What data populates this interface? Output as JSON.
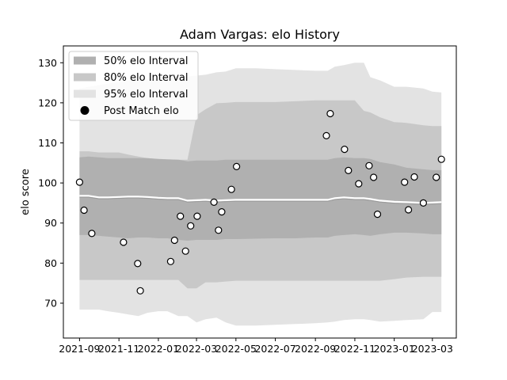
{
  "chart_data": {
    "type": "area",
    "title": "Adam Vargas: elo History",
    "xlabel": "",
    "ylabel": "elo score",
    "ylim": [
      61.3,
      134.2
    ],
    "xlim": [
      "2021-08-07",
      "2023-04-07"
    ],
    "y_ticks": [
      70,
      80,
      90,
      100,
      110,
      120,
      130
    ],
    "x_ticks": [
      "2021-09",
      "2021-11",
      "2022-01",
      "2022-03",
      "2022-05",
      "2022-07",
      "2022-09",
      "2022-11",
      "2023-01",
      "2023-03"
    ],
    "grid": false,
    "legend_position": "upper-left",
    "legend": [
      {
        "label": "50% elo Interval",
        "key": "band50",
        "color": "#b0b0b0"
      },
      {
        "label": "80% elo Interval",
        "key": "band80",
        "color": "#c8c8c8"
      },
      {
        "label": "95% elo Interval",
        "key": "band95",
        "color": "#e3e3e3"
      },
      {
        "label": "Post Match elo",
        "key": "points",
        "color": "#000000"
      }
    ],
    "dates": [
      "2021-09-01",
      "2021-09-15",
      "2021-10-01",
      "2021-10-15",
      "2021-11-01",
      "2021-11-15",
      "2021-12-01",
      "2021-12-15",
      "2022-01-01",
      "2022-01-15",
      "2022-02-01",
      "2022-02-15",
      "2022-03-01",
      "2022-03-15",
      "2022-04-01",
      "2022-04-15",
      "2022-05-01",
      "2022-06-01",
      "2022-07-01",
      "2022-08-01",
      "2022-09-01",
      "2022-09-20",
      "2022-10-01",
      "2022-10-15",
      "2022-11-01",
      "2022-11-15",
      "2022-11-25",
      "2022-12-10",
      "2023-01-01",
      "2023-01-20",
      "2023-02-15",
      "2023-03-01",
      "2023-03-15"
    ],
    "mean_rating": [
      96.8,
      96.8,
      96.4,
      96.4,
      96.5,
      96.6,
      96.6,
      96.5,
      96.3,
      96.2,
      96.2,
      95.6,
      95.7,
      95.8,
      95.6,
      95.7,
      95.8,
      95.8,
      95.8,
      95.8,
      95.8,
      95.8,
      96.2,
      96.4,
      96.2,
      96.2,
      96.0,
      95.6,
      95.3,
      95.2,
      95.0,
      95.1,
      95.2
    ],
    "band50": {
      "lower": [
        87.0,
        87.0,
        86.8,
        86.6,
        86.4,
        86.2,
        86.4,
        86.4,
        86.2,
        86.2,
        85.8,
        85.6,
        85.8,
        85.8,
        85.8,
        86.0,
        86.0,
        86.1,
        86.2,
        86.2,
        86.4,
        86.4,
        86.8,
        87.0,
        87.2,
        87.0,
        86.8,
        87.2,
        87.6,
        87.6,
        87.4,
        87.2,
        87.2
      ],
      "upper": [
        106.4,
        106.6,
        106.4,
        106.2,
        106.2,
        106.2,
        106.2,
        106.2,
        106.0,
        105.9,
        105.8,
        105.4,
        105.6,
        105.6,
        105.6,
        105.8,
        105.8,
        105.8,
        105.8,
        105.8,
        105.8,
        105.8,
        106.2,
        106.4,
        106.2,
        106.2,
        106.0,
        105.2,
        104.6,
        103.8,
        103.4,
        103.2,
        103.2
      ]
    },
    "band80": {
      "lower": [
        75.8,
        75.8,
        75.8,
        75.8,
        75.8,
        75.8,
        75.8,
        75.8,
        75.8,
        75.8,
        75.8,
        73.7,
        73.7,
        75.2,
        75.2,
        75.4,
        75.6,
        75.6,
        75.6,
        75.6,
        75.6,
        75.6,
        75.6,
        75.6,
        75.6,
        75.6,
        75.6,
        75.6,
        76.0,
        76.4,
        76.6,
        76.6,
        76.6
      ],
      "upper": [
        107.9,
        107.9,
        107.6,
        107.6,
        107.6,
        107.1,
        106.6,
        106.2,
        105.9,
        105.8,
        105.8,
        105.8,
        116.9,
        118.4,
        119.9,
        120.0,
        120.2,
        120.2,
        120.2,
        120.4,
        120.6,
        120.6,
        120.6,
        120.6,
        120.6,
        118.0,
        117.6,
        116.4,
        115.2,
        115.0,
        114.4,
        114.2,
        114.2
      ]
    },
    "band95": {
      "lower": [
        68.4,
        68.4,
        68.4,
        68.0,
        67.6,
        67.2,
        66.8,
        67.6,
        68.0,
        68.0,
        66.8,
        66.8,
        65.2,
        66.0,
        66.4,
        65.2,
        64.4,
        64.4,
        64.6,
        64.8,
        65.0,
        65.2,
        65.4,
        65.8,
        66.0,
        66.0,
        65.8,
        65.4,
        65.6,
        65.8,
        66.0,
        67.8,
        67.8
      ],
      "upper": [
        123.6,
        124.0,
        124.4,
        124.8,
        125.2,
        125.6,
        125.8,
        126.0,
        126.2,
        126.4,
        126.4,
        126.6,
        126.8,
        127.0,
        127.6,
        127.8,
        128.6,
        128.6,
        128.4,
        128.2,
        128.0,
        128.0,
        129.0,
        129.4,
        130.0,
        130.0,
        126.4,
        125.6,
        124.0,
        124.0,
        123.6,
        122.8,
        122.6
      ]
    },
    "points": [
      {
        "x": "2021-09-01",
        "y": 100.2
      },
      {
        "x": "2021-09-08",
        "y": 93.2
      },
      {
        "x": "2021-09-20",
        "y": 87.4
      },
      {
        "x": "2021-11-08",
        "y": 85.2
      },
      {
        "x": "2021-11-30",
        "y": 79.9
      },
      {
        "x": "2021-12-04",
        "y": 73.1
      },
      {
        "x": "2022-01-20",
        "y": 80.4
      },
      {
        "x": "2022-01-26",
        "y": 85.7
      },
      {
        "x": "2022-02-04",
        "y": 91.7
      },
      {
        "x": "2022-02-12",
        "y": 83.0
      },
      {
        "x": "2022-02-20",
        "y": 89.3
      },
      {
        "x": "2022-03-02",
        "y": 91.7
      },
      {
        "x": "2022-03-28",
        "y": 95.2
      },
      {
        "x": "2022-04-04",
        "y": 88.2
      },
      {
        "x": "2022-04-09",
        "y": 92.8
      },
      {
        "x": "2022-04-24",
        "y": 98.4
      },
      {
        "x": "2022-05-02",
        "y": 104.1
      },
      {
        "x": "2022-09-18",
        "y": 111.8
      },
      {
        "x": "2022-09-24",
        "y": 117.3
      },
      {
        "x": "2022-10-16",
        "y": 108.4
      },
      {
        "x": "2022-10-22",
        "y": 103.1
      },
      {
        "x": "2022-11-07",
        "y": 99.8
      },
      {
        "x": "2022-11-23",
        "y": 104.3
      },
      {
        "x": "2022-11-30",
        "y": 101.4
      },
      {
        "x": "2022-12-06",
        "y": 92.2
      },
      {
        "x": "2023-01-17",
        "y": 100.2
      },
      {
        "x": "2023-01-23",
        "y": 93.3
      },
      {
        "x": "2023-02-01",
        "y": 101.5
      },
      {
        "x": "2023-02-15",
        "y": 95.0
      },
      {
        "x": "2023-03-07",
        "y": 101.4
      },
      {
        "x": "2023-03-15",
        "y": 105.9
      }
    ]
  }
}
